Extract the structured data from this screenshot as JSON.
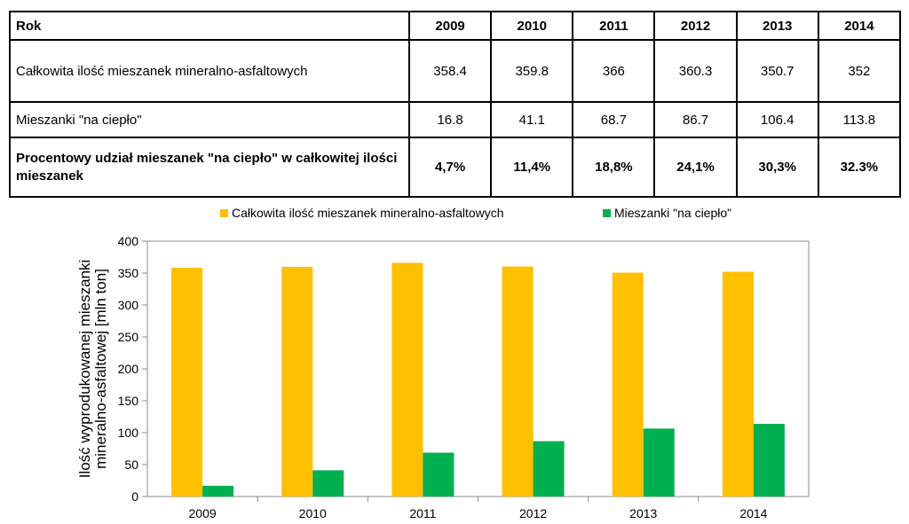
{
  "table": {
    "header": [
      "Rok",
      "2009",
      "2010",
      "2011",
      "2012",
      "2013",
      "2014"
    ],
    "rows": [
      {
        "label": "Całkowita ilość mieszanek mineralno-asfaltowych",
        "values": [
          "358.4",
          "359.8",
          "366",
          "360.3",
          "350.7",
          "352"
        ]
      },
      {
        "label": "Mieszanki \"na ciepło\"",
        "values": [
          "16.8",
          "41.1",
          "68.7",
          "86.7",
          "106.4",
          "113.8"
        ]
      },
      {
        "label": "Procentowy udział mieszanek \"na ciepło\" w całkowitej ilości mieszanek",
        "values": [
          "4,7%",
          "11,4%",
          "18,8%",
          "24,1%",
          "30,3%",
          "32.3%"
        ]
      }
    ]
  },
  "chart_data": {
    "type": "bar",
    "categories": [
      "2009",
      "2010",
      "2011",
      "2012",
      "2013",
      "2014"
    ],
    "series": [
      {
        "name": "Całkowita ilość mieszanek mineralno-asfaltowych",
        "color": "#ffc000",
        "values": [
          358.4,
          359.8,
          366,
          360.3,
          350.7,
          352
        ]
      },
      {
        "name": "Mieszanki \"na ciepło\"",
        "color": "#00b050",
        "values": [
          16.8,
          41.1,
          68.7,
          86.7,
          106.4,
          113.8
        ]
      }
    ],
    "ylabel_lines": [
      "Ilość wyprodukowanej mieszanki",
      "mineralno-asfaltowej [mln ton]"
    ],
    "yticks": [
      "0",
      "50",
      "100",
      "150",
      "200",
      "250",
      "300",
      "350",
      "400"
    ],
    "ylim": [
      0,
      400
    ],
    "legend_position": "top",
    "grid": false
  }
}
